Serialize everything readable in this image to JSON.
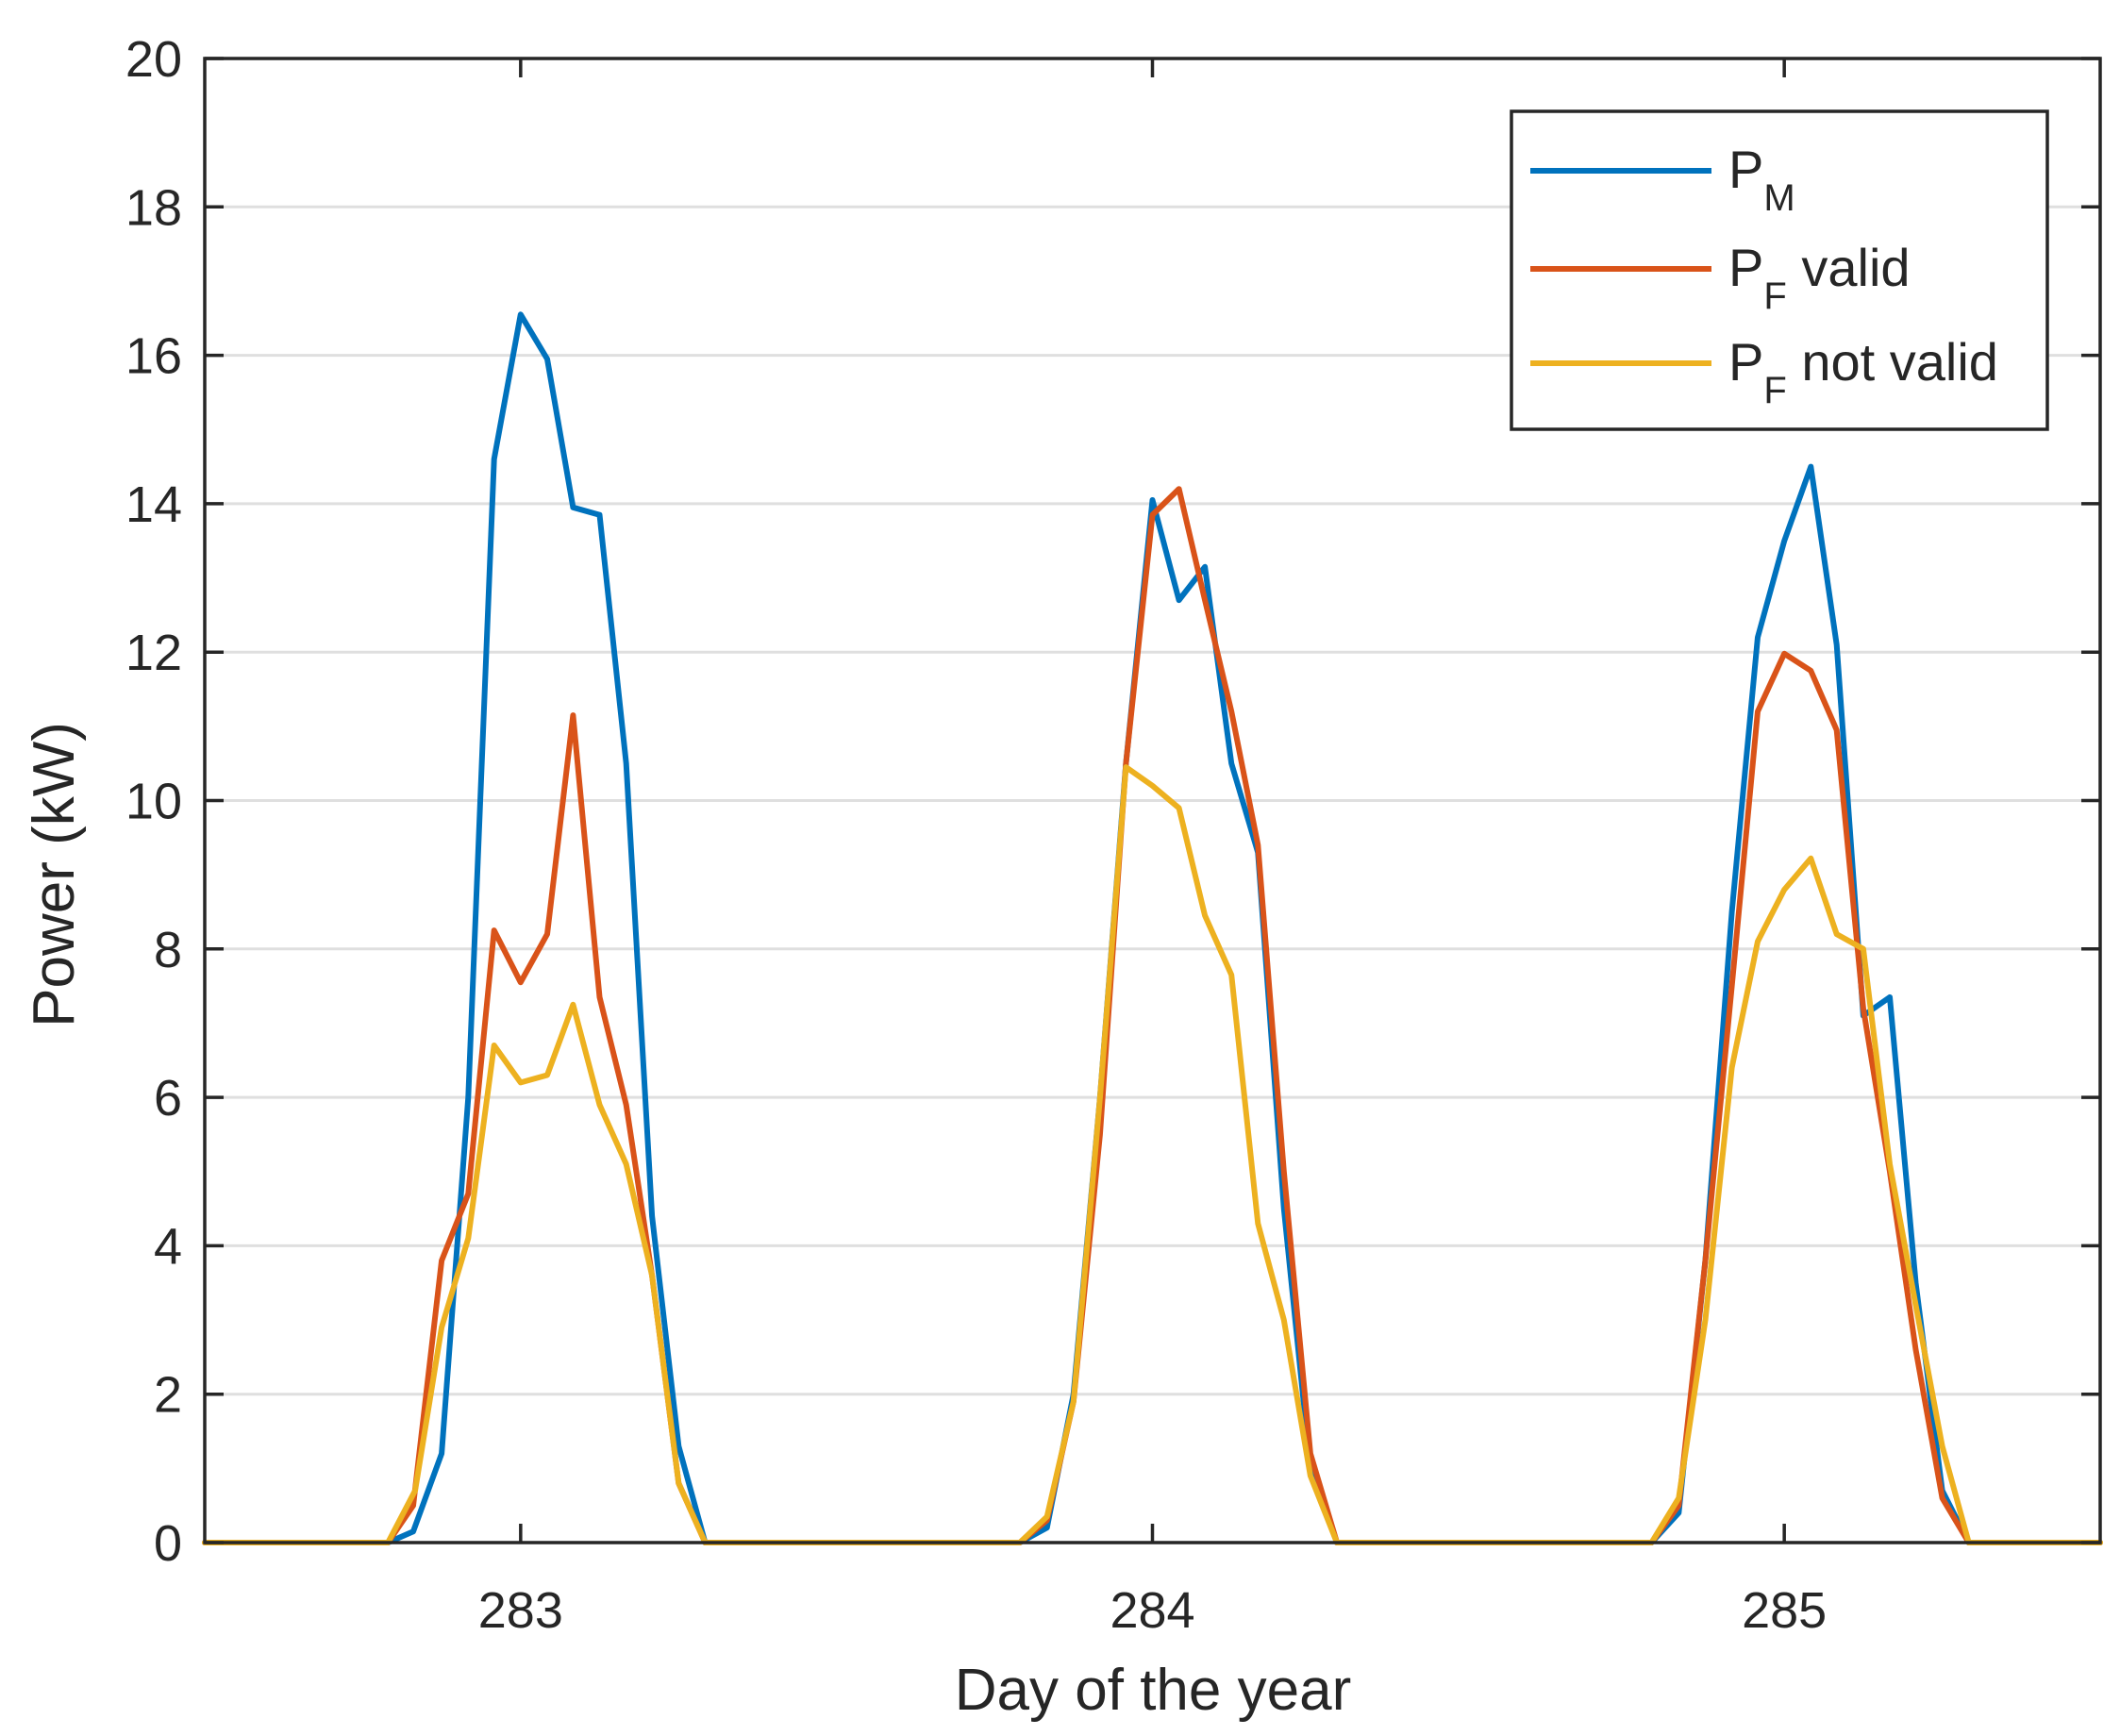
{
  "chart_data": {
    "type": "line",
    "title": "",
    "xlabel": "Day of the year",
    "ylabel": "Power (kW)",
    "xlim": [
      282.5,
      285.5
    ],
    "ylim": [
      0,
      20
    ],
    "xticks": [
      283,
      284,
      285
    ],
    "xtick_labels": [
      "283",
      "284",
      "285"
    ],
    "yticks": [
      0,
      2,
      4,
      6,
      8,
      10,
      12,
      14,
      16,
      18,
      20
    ],
    "ytick_labels": [
      "0",
      "2",
      "4",
      "6",
      "8",
      "10",
      "12",
      "14",
      "16",
      "18",
      "20"
    ],
    "grid": "horizontal",
    "legend_position": "top-right",
    "series": [
      {
        "name": "P_M",
        "label_main": "P",
        "label_sub": "M",
        "label_suffix": "",
        "color": "#0072BD",
        "points": [
          [
            282.5,
            0
          ],
          [
            282.79,
            0
          ],
          [
            282.83,
            0.15
          ],
          [
            282.875,
            1.2
          ],
          [
            282.917,
            6
          ],
          [
            282.958,
            14.6
          ],
          [
            283.0,
            16.55
          ],
          [
            283.042,
            15.95
          ],
          [
            283.083,
            13.95
          ],
          [
            283.125,
            13.85
          ],
          [
            283.167,
            10.5
          ],
          [
            283.208,
            4.4
          ],
          [
            283.25,
            1.3
          ],
          [
            283.292,
            0
          ],
          [
            283.79,
            0
          ],
          [
            283.833,
            0.2
          ],
          [
            283.875,
            2.0
          ],
          [
            283.917,
            6
          ],
          [
            283.958,
            10.5
          ],
          [
            284.0,
            14.05
          ],
          [
            284.042,
            12.7
          ],
          [
            284.083,
            13.15
          ],
          [
            284.125,
            10.5
          ],
          [
            284.167,
            9.3
          ],
          [
            284.208,
            4.5
          ],
          [
            284.25,
            1.0
          ],
          [
            284.292,
            0
          ],
          [
            284.79,
            0
          ],
          [
            284.833,
            0.4
          ],
          [
            284.875,
            3.8
          ],
          [
            284.917,
            8.5
          ],
          [
            284.958,
            12.2
          ],
          [
            285.0,
            13.5
          ],
          [
            285.042,
            14.5
          ],
          [
            285.083,
            12.1
          ],
          [
            285.125,
            7.1
          ],
          [
            285.167,
            7.35
          ],
          [
            285.208,
            3.5
          ],
          [
            285.25,
            0.7
          ],
          [
            285.292,
            0
          ],
          [
            285.5,
            0
          ]
        ]
      },
      {
        "name": "P_F valid",
        "label_main": "P",
        "label_sub": "F",
        "label_suffix": " valid",
        "color": "#D95319",
        "points": [
          [
            282.5,
            0
          ],
          [
            282.79,
            0
          ],
          [
            282.83,
            0.5
          ],
          [
            282.875,
            3.8
          ],
          [
            282.917,
            4.7
          ],
          [
            282.958,
            8.25
          ],
          [
            283.0,
            7.55
          ],
          [
            283.042,
            8.2
          ],
          [
            283.083,
            11.15
          ],
          [
            283.125,
            7.35
          ],
          [
            283.167,
            5.9
          ],
          [
            283.208,
            3.6
          ],
          [
            283.25,
            0.8
          ],
          [
            283.292,
            0
          ],
          [
            283.79,
            0
          ],
          [
            283.833,
            0.3
          ],
          [
            283.875,
            1.9
          ],
          [
            283.917,
            5.5
          ],
          [
            283.958,
            10.5
          ],
          [
            284.0,
            13.85
          ],
          [
            284.042,
            14.2
          ],
          [
            284.083,
            12.7
          ],
          [
            284.125,
            11.2
          ],
          [
            284.167,
            9.4
          ],
          [
            284.208,
            5.0
          ],
          [
            284.25,
            1.2
          ],
          [
            284.292,
            0
          ],
          [
            284.79,
            0
          ],
          [
            284.833,
            0.5
          ],
          [
            284.875,
            3.8
          ],
          [
            284.917,
            7.5
          ],
          [
            284.958,
            11.2
          ],
          [
            285.0,
            11.98
          ],
          [
            285.042,
            11.75
          ],
          [
            285.083,
            10.95
          ],
          [
            285.125,
            7.2
          ],
          [
            285.167,
            5.0
          ],
          [
            285.208,
            2.6
          ],
          [
            285.25,
            0.6
          ],
          [
            285.292,
            0
          ],
          [
            285.5,
            0
          ]
        ]
      },
      {
        "name": "P_F not valid",
        "label_main": "P",
        "label_sub": "F",
        "label_suffix": " not valid",
        "color": "#EDB120",
        "points": [
          [
            282.5,
            0
          ],
          [
            282.79,
            0
          ],
          [
            282.833,
            0.7
          ],
          [
            282.875,
            2.9
          ],
          [
            282.917,
            4.1
          ],
          [
            282.958,
            6.7
          ],
          [
            283.0,
            6.2
          ],
          [
            283.042,
            6.3
          ],
          [
            283.083,
            7.25
          ],
          [
            283.125,
            5.9
          ],
          [
            283.167,
            5.1
          ],
          [
            283.208,
            3.6
          ],
          [
            283.25,
            0.8
          ],
          [
            283.292,
            0
          ],
          [
            283.79,
            0
          ],
          [
            283.833,
            0.35
          ],
          [
            283.875,
            1.9
          ],
          [
            283.917,
            6.0
          ],
          [
            283.958,
            10.45
          ],
          [
            284.0,
            10.2
          ],
          [
            284.042,
            9.9
          ],
          [
            284.083,
            8.45
          ],
          [
            284.125,
            7.65
          ],
          [
            284.167,
            4.3
          ],
          [
            284.208,
            3.0
          ],
          [
            284.25,
            0.9
          ],
          [
            284.292,
            0
          ],
          [
            284.79,
            0
          ],
          [
            284.833,
            0.6
          ],
          [
            284.875,
            3.0
          ],
          [
            284.917,
            6.4
          ],
          [
            284.958,
            8.1
          ],
          [
            285.0,
            8.8
          ],
          [
            285.042,
            9.22
          ],
          [
            285.083,
            8.2
          ],
          [
            285.125,
            8.0
          ],
          [
            285.167,
            5.1
          ],
          [
            285.208,
            3.2
          ],
          [
            285.25,
            1.3
          ],
          [
            285.292,
            0
          ],
          [
            285.5,
            0
          ]
        ]
      }
    ]
  }
}
